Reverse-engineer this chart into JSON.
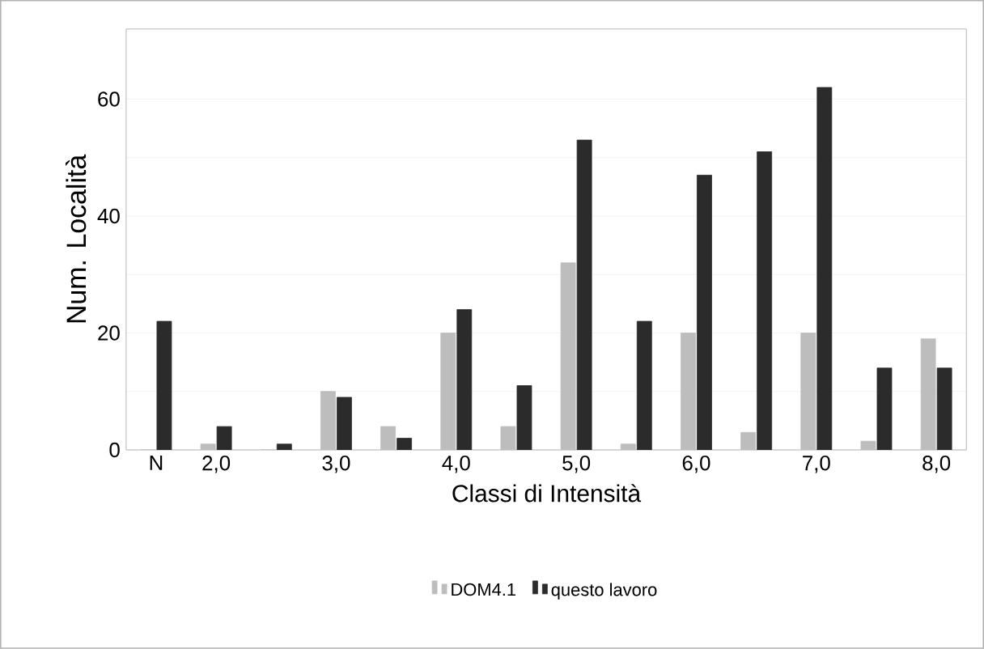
{
  "chart_data": {
    "type": "bar",
    "xlabel": "Classi di Intensità",
    "ylabel": "Num. Località",
    "categories": [
      "N",
      "2,0",
      null,
      "3,0",
      null,
      "4,0",
      null,
      "5,0",
      null,
      "6,0",
      null,
      "7,0",
      null,
      "8,0"
    ],
    "series": [
      {
        "name": "DOM4.1",
        "color": "#bdbdbd",
        "values": [
          0,
          1,
          0,
          10,
          4,
          20,
          4,
          32,
          1,
          20,
          3,
          20,
          1.5,
          19
        ]
      },
      {
        "name": "questo lavoro",
        "color": "#2b2b2b",
        "values": [
          22,
          4,
          1,
          9,
          2,
          24,
          11,
          53,
          22,
          47,
          51,
          62,
          14,
          14
        ]
      }
    ],
    "ylim": [
      0,
      72
    ],
    "yticks": [
      0,
      {
        "value": 10,
        "label": null
      },
      20,
      {
        "value": 30,
        "label": null
      },
      40,
      {
        "value": 50,
        "label": null
      },
      60
    ],
    "grid": "y",
    "legend": "bottom"
  }
}
